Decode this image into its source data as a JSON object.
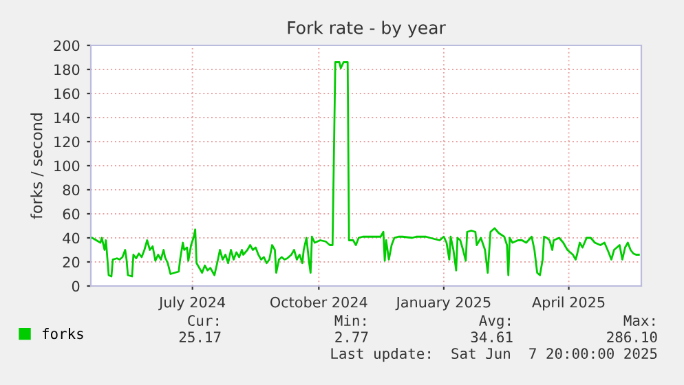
{
  "chart_data": {
    "type": "line",
    "title": "Fork rate - by year",
    "ylabel": "forks / second",
    "xlim": [
      "2024-05-03",
      "2025-06-07T20:00"
    ],
    "ylim": [
      0,
      200
    ],
    "yticks": [
      0,
      20,
      40,
      60,
      80,
      100,
      120,
      140,
      160,
      180,
      200
    ],
    "xticks": [
      {
        "value": "2024-07-16",
        "label": "July 2024"
      },
      {
        "value": "2024-10-16",
        "label": "October 2024"
      },
      {
        "value": "2025-01-15",
        "label": "January 2025"
      },
      {
        "value": "2025-04-16",
        "label": "April 2025"
      }
    ],
    "grid": true,
    "legend": "bottom left",
    "marker": "none",
    "line_style": "solid",
    "series": [
      {
        "name": "forks",
        "color": "#00cc00",
        "x": [
          "2024-05-04",
          "2024-05-07",
          "2024-05-10",
          "2024-05-11",
          "2024-05-13",
          "2024-05-14",
          "2024-05-16",
          "2024-05-18",
          "2024-05-19",
          "2024-05-22",
          "2024-05-24",
          "2024-05-26",
          "2024-05-28",
          "2024-05-29",
          "2024-05-30",
          "2024-06-02",
          "2024-06-03",
          "2024-06-05",
          "2024-06-07",
          "2024-06-09",
          "2024-06-11",
          "2024-06-13",
          "2024-06-15",
          "2024-06-17",
          "2024-06-19",
          "2024-06-21",
          "2024-06-23",
          "2024-06-25",
          "2024-06-26",
          "2024-06-28",
          "2024-06-30",
          "2024-07-03",
          "2024-07-06",
          "2024-07-07",
          "2024-07-09",
          "2024-07-10",
          "2024-07-12",
          "2024-07-13",
          "2024-07-15",
          "2024-07-17",
          "2024-07-18",
          "2024-07-19",
          "2024-07-21",
          "2024-07-23",
          "2024-07-25",
          "2024-07-27",
          "2024-07-29",
          "2024-08-01",
          "2024-08-03",
          "2024-08-05",
          "2024-08-07",
          "2024-08-09",
          "2024-08-11",
          "2024-08-13",
          "2024-08-15",
          "2024-08-17",
          "2024-08-19",
          "2024-08-21",
          "2024-08-22",
          "2024-08-25",
          "2024-08-27",
          "2024-08-29",
          "2024-08-31",
          "2024-09-02",
          "2024-09-04",
          "2024-09-06",
          "2024-09-08",
          "2024-09-10",
          "2024-09-12",
          "2024-09-14",
          "2024-09-15",
          "2024-09-17",
          "2024-09-19",
          "2024-09-21",
          "2024-09-23",
          "2024-09-26",
          "2024-09-28",
          "2024-09-30",
          "2024-10-02",
          "2024-10-04",
          "2024-10-05",
          "2024-10-07",
          "2024-10-09",
          "2024-10-10",
          "2024-10-11",
          "2024-10-13",
          "2024-10-15",
          "2024-10-17",
          "2024-10-21",
          "2024-10-24",
          "2024-10-26",
          "2024-10-28",
          "2024-10-31",
          "2024-11-01",
          "2024-11-03",
          "2024-11-06",
          "2024-11-07",
          "2024-11-10",
          "2024-11-12",
          "2024-11-14",
          "2024-11-17",
          "2024-11-20",
          "2024-11-26",
          "2024-11-30",
          "2024-12-02",
          "2024-12-03",
          "2024-12-04",
          "2024-12-06",
          "2024-12-08",
          "2024-12-10",
          "2024-12-13",
          "2024-12-16",
          "2024-12-23",
          "2024-12-26",
          "2025-01-02",
          "2025-01-05",
          "2025-01-12",
          "2025-01-15",
          "2025-01-17",
          "2025-01-19",
          "2025-01-20",
          "2025-01-22",
          "2025-01-24",
          "2025-01-25",
          "2025-01-27",
          "2025-01-29",
          "2025-01-31",
          "2025-02-01",
          "2025-02-04",
          "2025-02-07",
          "2025-02-08",
          "2025-02-11",
          "2025-02-14",
          "2025-02-16",
          "2025-02-18",
          "2025-02-21",
          "2025-02-24",
          "2025-02-28",
          "2025-03-02",
          "2025-03-03",
          "2025-03-04",
          "2025-03-06",
          "2025-03-10",
          "2025-03-13",
          "2025-03-16",
          "2025-03-20",
          "2025-03-22",
          "2025-03-24",
          "2025-03-26",
          "2025-03-28",
          "2025-03-29",
          "2025-03-31",
          "2025-04-02",
          "2025-04-04",
          "2025-04-05",
          "2025-04-09",
          "2025-04-12",
          "2025-04-15",
          "2025-04-19",
          "2025-04-21",
          "2025-04-22",
          "2025-04-24",
          "2025-04-26",
          "2025-04-29",
          "2025-05-02",
          "2025-05-05",
          "2025-05-09",
          "2025-05-12",
          "2025-05-15",
          "2025-05-17",
          "2025-05-19",
          "2025-05-21",
          "2025-05-23",
          "2025-05-25",
          "2025-05-27",
          "2025-05-29",
          "2025-05-31",
          "2025-06-02",
          "2025-06-04",
          "2025-06-06"
        ],
        "values": [
          40,
          38,
          36,
          40,
          30,
          38,
          9,
          8,
          22,
          23,
          22,
          24,
          30,
          22,
          9,
          8,
          26,
          23,
          27,
          24,
          30,
          38,
          30,
          33,
          21,
          26,
          22,
          30,
          24,
          19,
          10,
          11,
          12,
          22,
          36,
          30,
          32,
          21,
          34,
          41,
          47,
          19,
          15,
          11,
          17,
          13,
          15,
          9,
          19,
          30,
          22,
          26,
          19,
          30,
          22,
          28,
          24,
          30,
          26,
          30,
          34,
          30,
          32,
          26,
          22,
          24,
          19,
          22,
          34,
          30,
          11,
          22,
          24,
          22,
          23,
          26,
          30,
          22,
          26,
          19,
          30,
          40,
          19,
          11,
          41,
          36,
          37,
          38,
          37,
          34,
          34,
          186,
          186,
          181,
          186,
          186,
          38,
          38,
          34,
          40,
          41,
          41,
          41,
          41,
          45,
          21,
          38,
          22,
          34,
          40,
          41,
          41,
          40,
          41,
          41,
          40,
          38,
          41,
          36,
          22,
          41,
          30,
          13,
          40,
          38,
          30,
          21,
          45,
          46,
          45,
          34,
          40,
          30,
          11,
          45,
          48,
          44,
          41,
          34,
          9,
          40,
          36,
          38,
          38,
          36,
          41,
          30,
          11,
          9,
          22,
          41,
          40,
          38,
          30,
          38,
          40,
          36,
          30,
          26,
          22,
          26,
          36,
          32,
          40,
          40,
          36,
          34,
          36,
          28,
          22,
          30,
          32,
          34,
          22,
          32,
          36,
          30,
          27,
          26,
          26
        ]
      }
    ],
    "annotations": [
      "Cur:",
      "25.17",
      "Min:",
      "2.77",
      "Avg:",
      "34.61",
      "Max:",
      "286.10",
      "Last update:  Sat Jun  7 20:00:00 2025"
    ]
  }
}
